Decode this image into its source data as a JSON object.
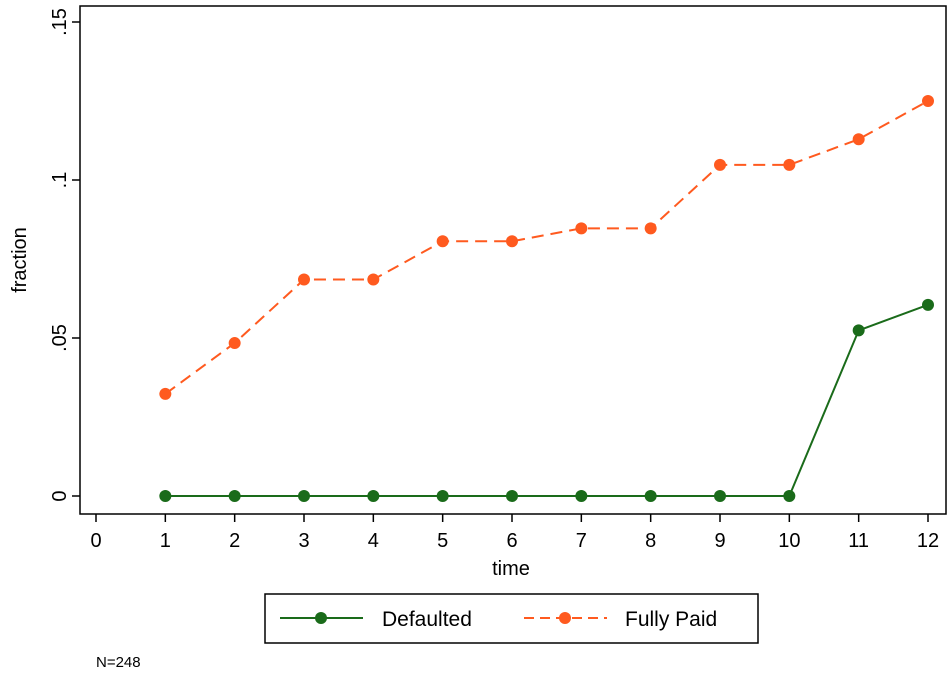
{
  "chart_data": {
    "type": "line",
    "xlabel": "time",
    "ylabel": "fraction",
    "xlim": [
      0,
      12
    ],
    "ylim": [
      0,
      0.15
    ],
    "x_ticks": [
      "0",
      "1",
      "2",
      "3",
      "4",
      "5",
      "6",
      "7",
      "8",
      "9",
      "10",
      "11",
      "12"
    ],
    "y_ticks": [
      {
        "value": 0,
        "label": "0"
      },
      {
        "value": 0.05,
        "label": ".05"
      },
      {
        "value": 0.1,
        "label": ".1"
      },
      {
        "value": 0.15,
        "label": ".15"
      }
    ],
    "x": [
      1,
      2,
      3,
      4,
      5,
      6,
      7,
      8,
      9,
      10,
      11,
      12
    ],
    "series": [
      {
        "name": "Defaulted",
        "color": "#1a6b1a",
        "line_style": "solid",
        "values": [
          0,
          0,
          0,
          0,
          0,
          0,
          0,
          0,
          0,
          0,
          0.0524,
          0.0605
        ]
      },
      {
        "name": "Fully Paid",
        "color": "#ff5a1f",
        "line_style": "dashed",
        "values": [
          0.0323,
          0.0484,
          0.0685,
          0.0685,
          0.0806,
          0.0806,
          0.0847,
          0.0847,
          0.1048,
          0.1048,
          0.1129,
          0.125
        ]
      }
    ],
    "legend_position": "bottom-center",
    "grid": false,
    "note": "N=248"
  }
}
